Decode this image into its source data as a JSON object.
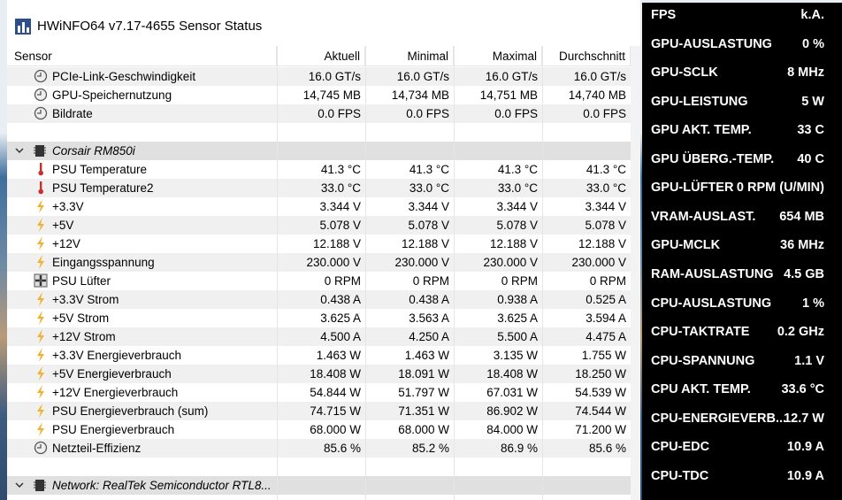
{
  "window": {
    "title": "HWiNFO64 v7.17-4655 Sensor Status"
  },
  "table": {
    "headers": [
      "Sensor",
      "Aktuell",
      "Minimal",
      "Maximal",
      "Durchschnitt"
    ],
    "sections": [
      {
        "rows": [
          {
            "label": "PCIe-Link-Geschwindigkeit",
            "icon": "clock",
            "values": [
              "16.0 GT/s",
              "16.0 GT/s",
              "16.0 GT/s",
              "16.0 GT/s"
            ]
          },
          {
            "label": "GPU-Speichernutzung",
            "icon": "clock",
            "values": [
              "14,745 MB",
              "14,734 MB",
              "14,751 MB",
              "14,740 MB"
            ]
          },
          {
            "label": "Bildrate",
            "icon": "clock",
            "values": [
              "0.0 FPS",
              "0.0 FPS",
              "0.0 FPS",
              "0.0 FPS"
            ]
          }
        ]
      },
      {
        "title": "Corsair RM850i",
        "rows": [
          {
            "label": "PSU Temperature",
            "icon": "thermometer",
            "values": [
              "41.3 °C",
              "41.3 °C",
              "41.3 °C",
              "41.3 °C"
            ]
          },
          {
            "label": "PSU Temperature2",
            "icon": "thermometer",
            "values": [
              "33.0 °C",
              "33.0 °C",
              "33.0 °C",
              "33.0 °C"
            ]
          },
          {
            "label": "+3.3V",
            "icon": "bolt",
            "values": [
              "3.344 V",
              "3.344 V",
              "3.344 V",
              "3.344 V"
            ]
          },
          {
            "label": "+5V",
            "icon": "bolt",
            "values": [
              "5.078 V",
              "5.078 V",
              "5.078 V",
              "5.078 V"
            ]
          },
          {
            "label": "+12V",
            "icon": "bolt",
            "values": [
              "12.188 V",
              "12.188 V",
              "12.188 V",
              "12.188 V"
            ]
          },
          {
            "label": "Eingangsspannung",
            "icon": "bolt",
            "values": [
              "230.000 V",
              "230.000 V",
              "230.000 V",
              "230.000 V"
            ]
          },
          {
            "label": "PSU Lüfter",
            "icon": "fan",
            "values": [
              "0 RPM",
              "0 RPM",
              "0 RPM",
              "0 RPM"
            ]
          },
          {
            "label": "+3.3V Strom",
            "icon": "bolt",
            "values": [
              "0.438 A",
              "0.438 A",
              "0.938 A",
              "0.525 A"
            ]
          },
          {
            "label": "+5V Strom",
            "icon": "bolt",
            "values": [
              "3.625 A",
              "3.563 A",
              "3.625 A",
              "3.594 A"
            ]
          },
          {
            "label": "+12V Strom",
            "icon": "bolt",
            "values": [
              "4.500 A",
              "4.250 A",
              "5.500 A",
              "4.475 A"
            ]
          },
          {
            "label": "+3.3V Energieverbrauch",
            "icon": "bolt",
            "values": [
              "1.463 W",
              "1.463 W",
              "3.135 W",
              "1.755 W"
            ]
          },
          {
            "label": "+5V Energieverbrauch",
            "icon": "bolt",
            "values": [
              "18.408 W",
              "18.091 W",
              "18.408 W",
              "18.250 W"
            ]
          },
          {
            "label": "+12V Energieverbrauch",
            "icon": "bolt",
            "values": [
              "54.844 W",
              "51.797 W",
              "67.031 W",
              "54.539 W"
            ]
          },
          {
            "label": "PSU Energieverbrauch (sum)",
            "icon": "bolt",
            "values": [
              "74.715 W",
              "71.351 W",
              "86.902 W",
              "74.544 W"
            ]
          },
          {
            "label": "PSU Energieverbrauch",
            "icon": "bolt",
            "values": [
              "68.000 W",
              "68.000 W",
              "84.000 W",
              "71.200 W"
            ]
          },
          {
            "label": "Netzteil-Effizienz",
            "icon": "clock",
            "values": [
              "85.6 %",
              "85.2 %",
              "86.9 %",
              "85.6 %"
            ]
          }
        ]
      },
      {
        "title": "Network: RealTek Semiconductor RTL8...",
        "rows": []
      }
    ]
  },
  "overlay": {
    "items": [
      {
        "label": "FPS",
        "value": "k.A."
      },
      {
        "label": "GPU-AUSLASTUNG",
        "value": "0 %"
      },
      {
        "label": "GPU-SCLK",
        "value": "8 MHz"
      },
      {
        "label": "GPU-LEISTUNG",
        "value": "5 W"
      },
      {
        "label": "GPU AKT. TEMP.",
        "value": "33 C"
      },
      {
        "label": "GPU ÜBERG.-TEMP.",
        "value": "40 C"
      },
      {
        "label": "GPU-LÜFTER",
        "value": "0 RPM (U/MIN)"
      },
      {
        "label": "VRAM-AUSLAST.",
        "value": "654 MB"
      },
      {
        "label": "GPU-MCLK",
        "value": "36 MHz"
      },
      {
        "label": "RAM-AUSLASTUNG",
        "value": "4.5 GB"
      },
      {
        "label": "CPU-AUSLASTUNG",
        "value": "1 %"
      },
      {
        "label": "CPU-TAKTRATE",
        "value": "0.2 GHz"
      },
      {
        "label": "CPU-SPANNUNG",
        "value": "1.1 V"
      },
      {
        "label": "CPU AKT. TEMP.",
        "value": "33.6 °C"
      },
      {
        "label": "CPU-ENERGIEVERB...",
        "value": "12.7 W"
      },
      {
        "label": "CPU-EDC",
        "value": "10.9 A"
      },
      {
        "label": "CPU-TDC",
        "value": "10.9 A"
      }
    ]
  }
}
